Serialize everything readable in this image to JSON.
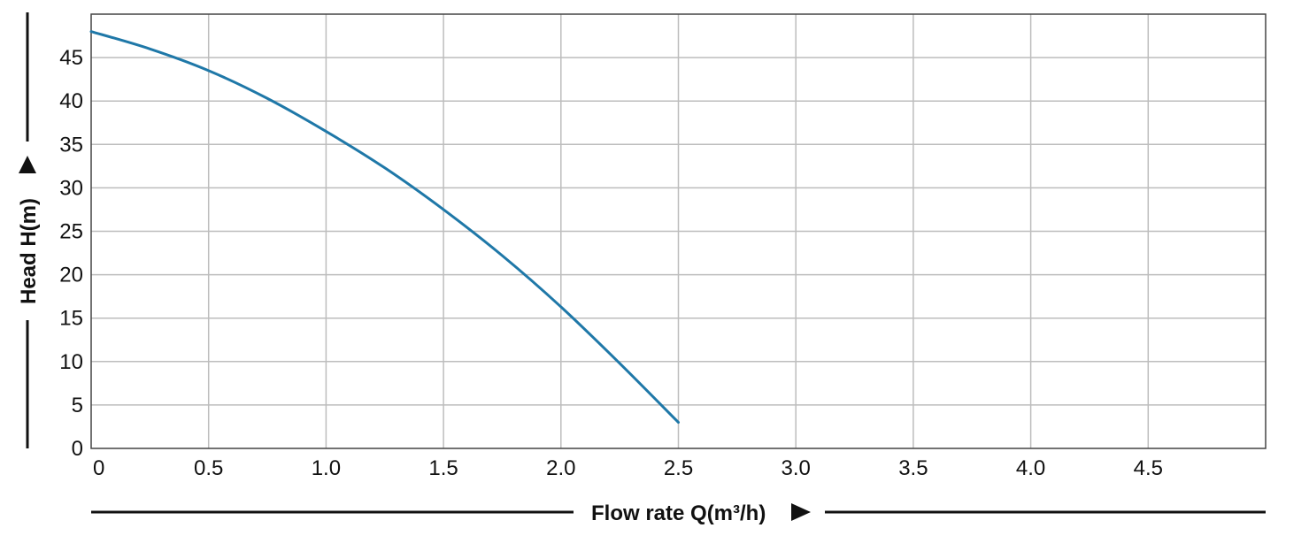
{
  "chart_data": {
    "type": "line",
    "title": "",
    "xlabel": "Flow rate Q(m³/h)",
    "ylabel": "Head H(m)",
    "xlim": [
      0,
      5
    ],
    "ylim": [
      0,
      50
    ],
    "x_ticks": [
      "0",
      "0.5",
      "1.0",
      "1.5",
      "2.0",
      "2.5",
      "3.0",
      "3.5",
      "4.0",
      "4.5"
    ],
    "y_ticks": [
      "0",
      "5",
      "10",
      "15",
      "20",
      "25",
      "30",
      "35",
      "40",
      "45"
    ],
    "grid": true,
    "line_color": "#1f78a8",
    "series": [
      {
        "x": [
          0,
          0.25,
          0.5,
          0.75,
          1.0,
          1.25,
          1.5,
          1.75,
          2.0,
          2.25,
          2.5
        ],
        "y": [
          48,
          46,
          43.5,
          40.3,
          36.5,
          32.3,
          27.5,
          22.2,
          16.3,
          9.8,
          3
        ]
      }
    ]
  }
}
